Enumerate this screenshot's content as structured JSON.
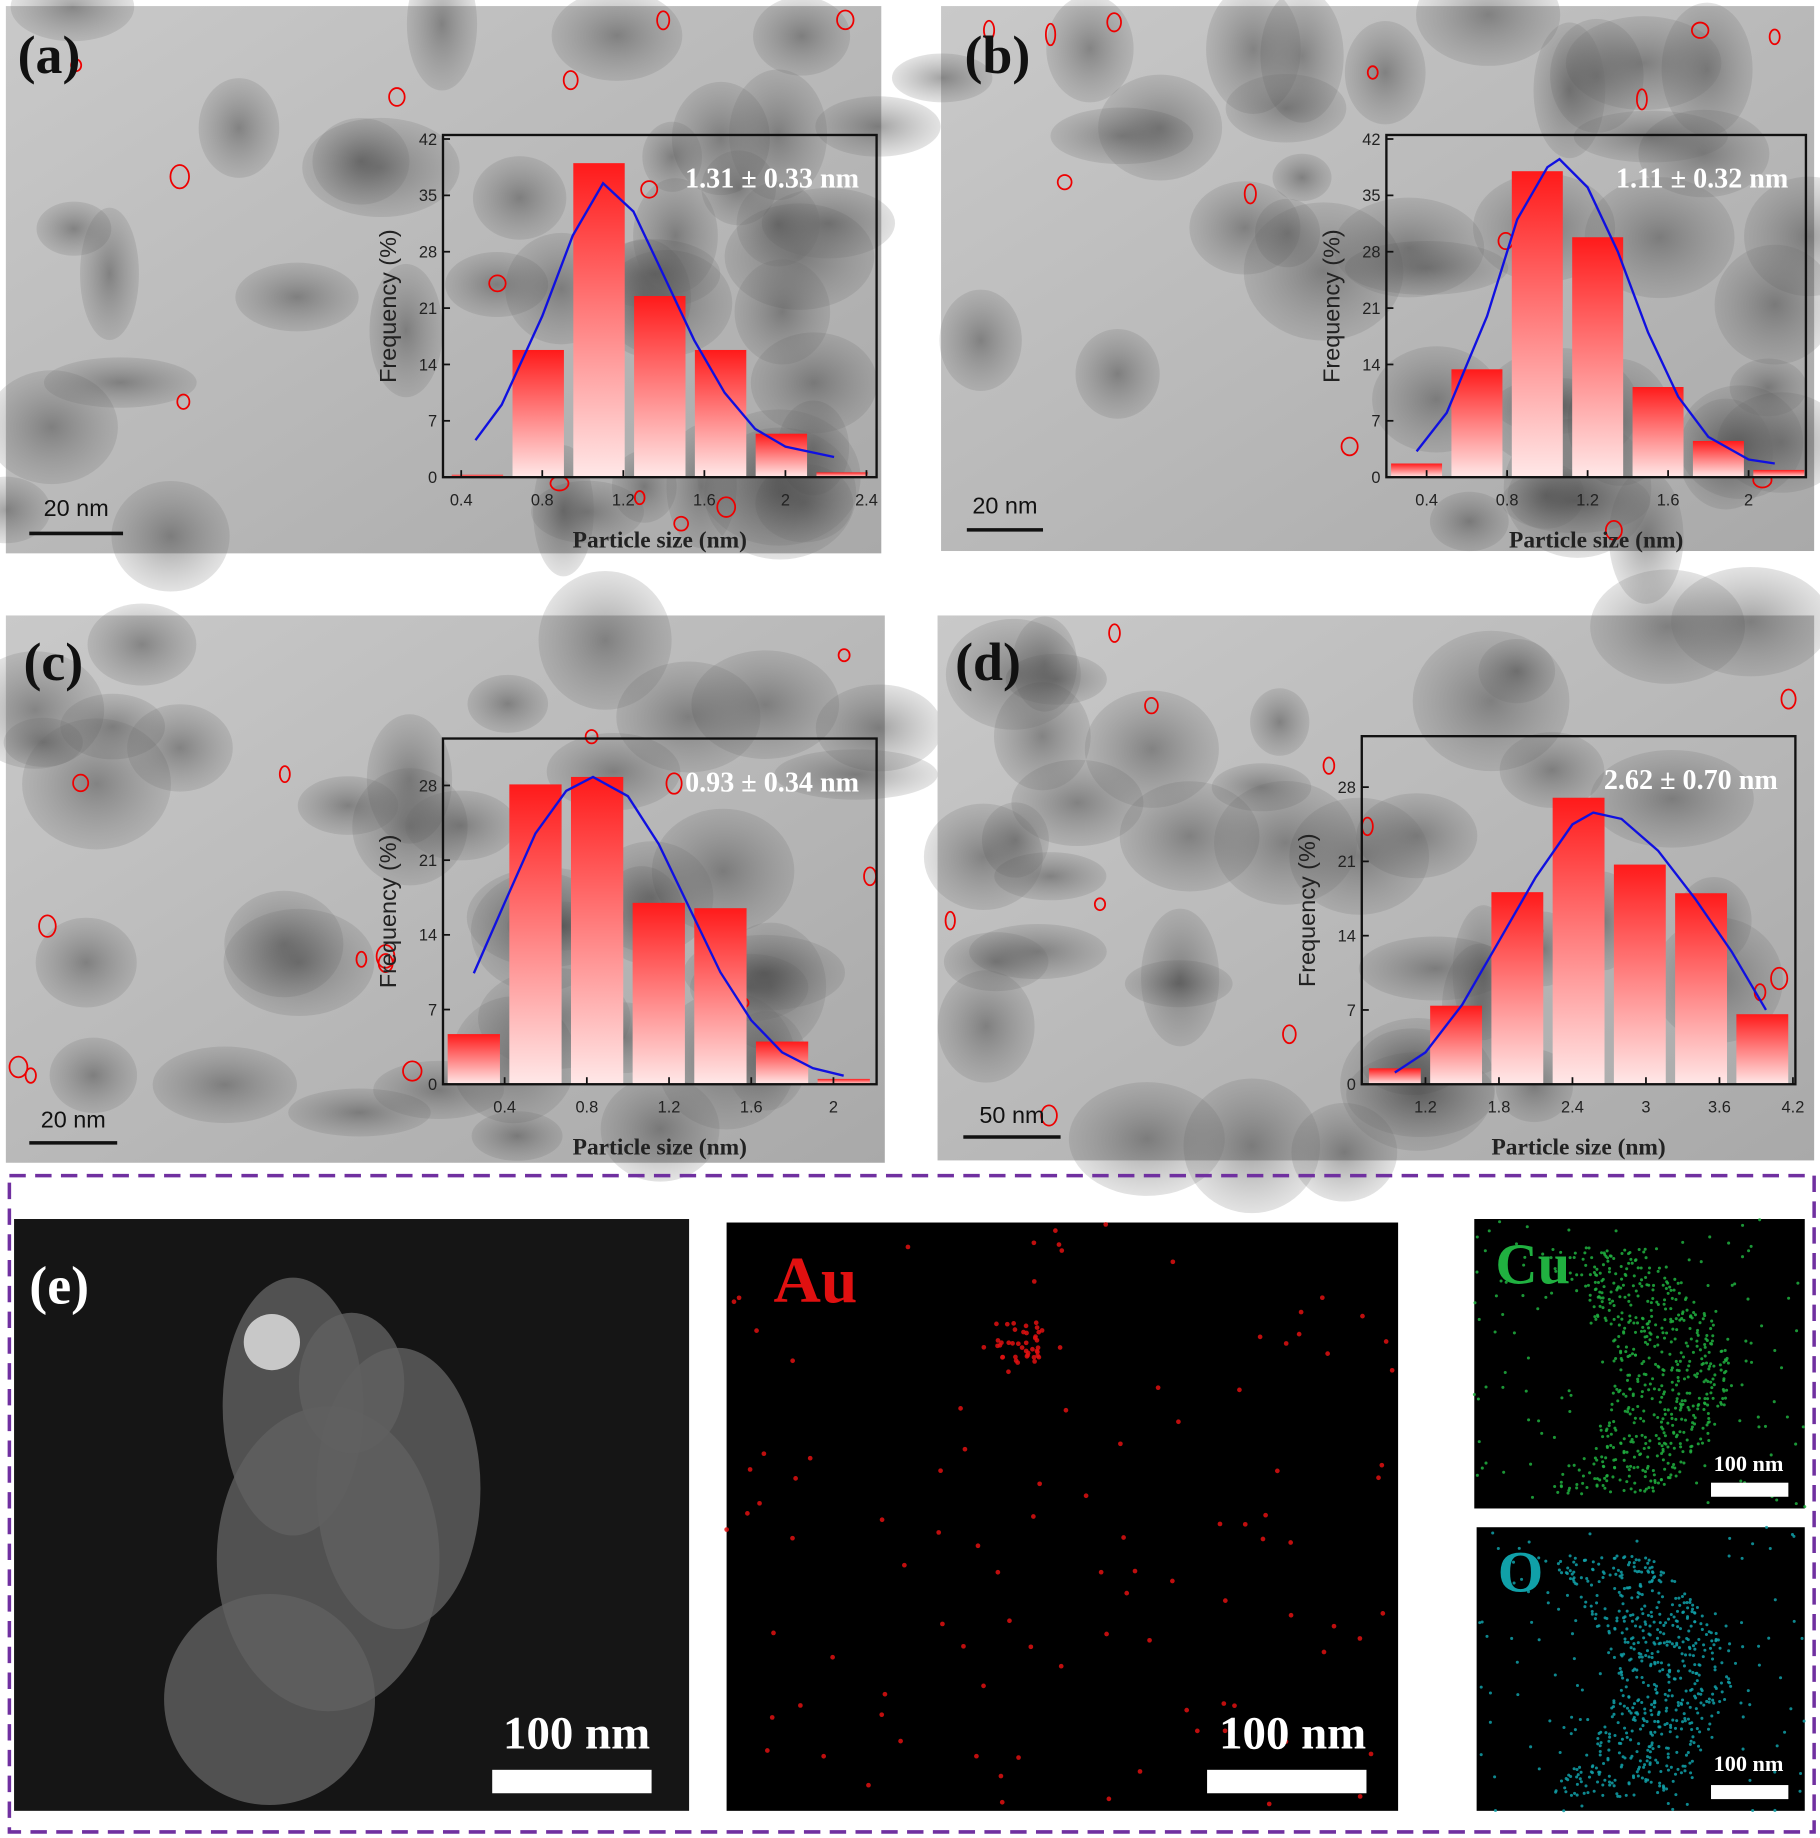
{
  "chart_data": [
    {
      "type": "histogram",
      "panel_label": "(a)",
      "annotation": "1.31 ± 0.33 nm",
      "xlabel": "Particle size (nm)",
      "ylabel": "Frequency (%)",
      "scale_bar": "20 nm",
      "bins": [
        0.33,
        0.63,
        0.93,
        1.23,
        1.53,
        1.83,
        2.13,
        2.43
      ],
      "values": [
        0.3,
        15.8,
        39,
        22.5,
        15.8,
        5.4,
        0.6
      ],
      "color": "#ff1a1a",
      "fit": {
        "x": [
          0.47,
          0.6,
          0.8,
          0.95,
          1.1,
          1.25,
          1.4,
          1.55,
          1.7,
          1.85,
          2.0,
          2.24
        ],
        "values": [
          4.6,
          9,
          20,
          30,
          36.5,
          33,
          25,
          17,
          10.5,
          6,
          3.8,
          2.5
        ],
        "color": "#1010e0"
      },
      "xlim": [
        0.31,
        2.45
      ],
      "xticks": [
        0.4,
        0.8,
        1.2,
        1.6,
        2.0,
        2.4
      ],
      "ylim": [
        0,
        42.5
      ],
      "yticks": [
        0,
        7,
        14,
        21,
        28,
        35,
        42
      ]
    },
    {
      "type": "histogram",
      "panel_label": "(b)",
      "annotation": "1.11 ± 0.32 nm",
      "xlabel": "Particle size (nm)",
      "ylabel": "Frequency (%)",
      "scale_bar": "20 nm",
      "bins": [
        0.2,
        0.5,
        0.8,
        1.1,
        1.4,
        1.7,
        2.0,
        2.3
      ],
      "values": [
        1.7,
        13.4,
        38,
        29.8,
        11.2,
        4.5,
        0.9
      ],
      "color": "#ff1a1a",
      "fit": {
        "x": [
          0.35,
          0.5,
          0.7,
          0.85,
          1.0,
          1.06,
          1.2,
          1.35,
          1.5,
          1.65,
          1.8,
          2.0,
          2.13
        ],
        "values": [
          3.2,
          8,
          20,
          32,
          38.5,
          39.5,
          36,
          28,
          18,
          10,
          5,
          2.2,
          1.7
        ],
        "color": "#1010e0"
      },
      "xlim": [
        0.2,
        2.285
      ],
      "xticks": [
        0.4,
        0.8,
        1.2,
        1.6,
        2.0
      ],
      "ylim": [
        0,
        42.5
      ],
      "yticks": [
        0,
        7,
        14,
        21,
        28,
        35,
        42
      ]
    },
    {
      "type": "histogram",
      "panel_label": "(c)",
      "annotation": "0.93 ± 0.34 nm",
      "xlabel": "Particle size (nm)",
      "ylabel": "Frequency (%)",
      "scale_bar": "20 nm",
      "bins": [
        0.1,
        0.4,
        0.7,
        1.0,
        1.3,
        1.6,
        1.9,
        2.2
      ],
      "values": [
        4.7,
        28.1,
        28.8,
        17,
        16.5,
        4,
        0.5
      ],
      "color": "#ff1a1a",
      "fit": {
        "x": [
          0.25,
          0.4,
          0.55,
          0.7,
          0.83,
          1.0,
          1.15,
          1.3,
          1.45,
          1.6,
          1.75,
          1.9,
          2.05
        ],
        "values": [
          10.4,
          17,
          23.5,
          27.5,
          28.8,
          27,
          22.5,
          16.5,
          10.5,
          6,
          3,
          1.5,
          0.8
        ],
        "color": "#1010e0"
      },
      "xlim": [
        0.1,
        2.21
      ],
      "xticks": [
        0.4,
        0.8,
        1.2,
        1.6,
        2.0
      ],
      "ylim": [
        0,
        32.4
      ],
      "yticks": [
        0,
        7,
        14,
        21,
        28
      ]
    },
    {
      "type": "histogram",
      "panel_label": "(d)",
      "annotation": "2.62 ± 0.70 nm",
      "xlabel": "Particle size (nm)",
      "ylabel": "Frequency (%)",
      "scale_bar": "50 nm",
      "bins": [
        0.7,
        1.2,
        1.7,
        2.2,
        2.7,
        3.2,
        3.7,
        4.2
      ],
      "values": [
        1.5,
        7.4,
        18.1,
        27,
        20.7,
        18,
        6.6
      ],
      "color": "#ff1a1a",
      "fit": {
        "x": [
          0.95,
          1.2,
          1.5,
          1.8,
          2.1,
          2.4,
          2.57,
          2.8,
          3.1,
          3.4,
          3.7,
          3.98
        ],
        "values": [
          1.1,
          3,
          7.5,
          13.5,
          19.5,
          24.5,
          25.6,
          25,
          22,
          17.5,
          12.5,
          7
        ],
        "color": "#1010e0"
      },
      "xlim": [
        0.68,
        4.22
      ],
      "xticks": [
        1.2,
        1.8,
        2.4,
        3.0,
        3.6,
        4.2
      ],
      "ylim": [
        0,
        32.8
      ],
      "yticks": [
        0,
        7,
        14,
        21,
        28
      ]
    }
  ],
  "eds_panel": {
    "panel_label": "(e)",
    "image_scale_bar": "100 nm",
    "border_color": "#7030a0",
    "maps": [
      {
        "element": "Au",
        "color": "#e01010",
        "scale_bar": "100 nm"
      },
      {
        "element": "Cu",
        "color": "#20b040",
        "scale_bar": "100 nm"
      },
      {
        "element": "O",
        "color": "#10a0a8",
        "scale_bar": "100 nm"
      }
    ]
  }
}
